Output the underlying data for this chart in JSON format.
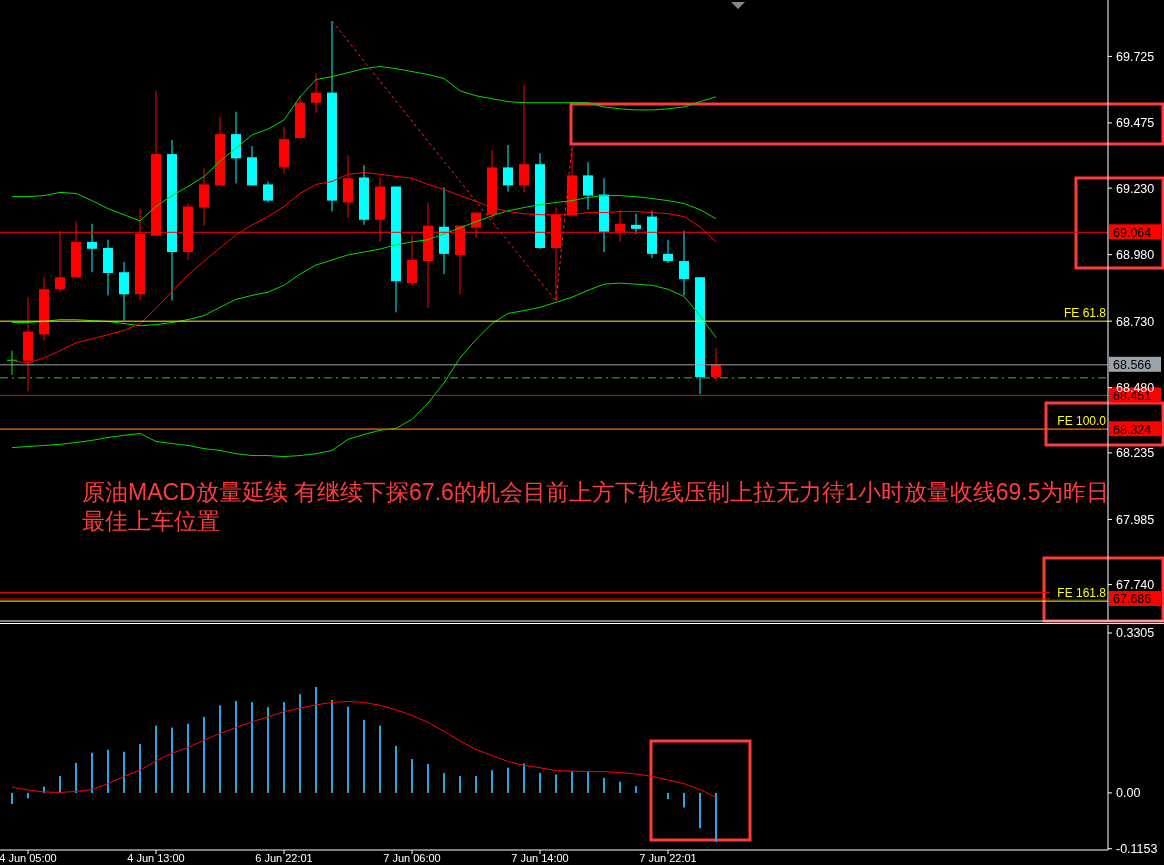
{
  "chart_data": [
    {
      "type": "candlestick",
      "tick_labels": "y",
      "categories": [
        null,
        null,
        null,
        null,
        null,
        null,
        null,
        null,
        null,
        null,
        null,
        null,
        null,
        null,
        null,
        null,
        null,
        null,
        null,
        null,
        null,
        null,
        null,
        null,
        null,
        null,
        null,
        null,
        null,
        null,
        null,
        null,
        null,
        null,
        null,
        null,
        null,
        null,
        null,
        null,
        null,
        null,
        null,
        null,
        null
      ],
      "ohlc": [
        [
          68.585,
          68.619,
          68.528,
          68.585
        ],
        [
          68.581,
          68.82,
          68.467,
          68.691
        ],
        [
          68.68,
          68.895,
          68.657,
          68.85
        ],
        [
          68.85,
          69.07,
          68.839,
          68.895
        ],
        [
          68.895,
          69.104,
          68.895,
          69.028
        ],
        [
          69.028,
          69.096,
          68.914,
          69.002
        ],
        [
          69.005,
          69.036,
          68.827,
          68.911
        ],
        [
          68.914,
          68.952,
          68.733,
          68.831
        ],
        [
          68.831,
          69.153,
          68.808,
          69.058
        ],
        [
          69.051,
          69.596,
          69.051,
          69.358
        ],
        [
          69.358,
          69.411,
          68.808,
          68.99
        ],
        [
          68.99,
          69.172,
          68.96,
          69.161
        ],
        [
          69.157,
          69.305,
          69.089,
          69.244
        ],
        [
          69.24,
          69.498,
          69.24,
          69.433
        ],
        [
          69.433,
          69.517,
          69.248,
          69.342
        ],
        [
          69.346,
          69.388,
          69.24,
          69.24
        ],
        [
          69.244,
          69.255,
          69.176,
          69.183
        ],
        [
          69.308,
          69.46,
          69.286,
          69.414
        ],
        [
          69.418,
          69.577,
          69.418,
          69.551
        ],
        [
          69.551,
          69.661,
          69.513,
          69.589
        ],
        [
          69.589,
          69.858,
          69.142,
          69.183
        ],
        [
          69.176,
          69.354,
          69.119,
          69.267
        ],
        [
          69.27,
          69.316,
          69.092,
          69.111
        ],
        [
          69.111,
          69.27,
          69.028,
          69.236
        ],
        [
          69.236,
          69.236,
          68.763,
          68.88
        ],
        [
          68.873,
          69.055,
          68.865,
          68.96
        ],
        [
          68.956,
          69.176,
          68.778,
          69.089
        ],
        [
          69.085,
          69.233,
          68.907,
          68.983
        ],
        [
          68.979,
          69.089,
          68.831,
          69.089
        ],
        [
          69.081,
          69.138,
          69.043,
          69.138
        ],
        [
          69.13,
          69.373,
          69.115,
          69.308
        ],
        [
          69.308,
          69.392,
          69.217,
          69.24
        ],
        [
          69.24,
          69.619,
          69.214,
          69.32
        ],
        [
          69.32,
          69.361,
          69.002,
          69.005
        ],
        [
          69.005,
          69.157,
          68.805,
          69.13
        ],
        [
          69.127,
          69.38,
          69.127,
          69.278
        ],
        [
          69.278,
          69.327,
          69.149,
          69.202
        ],
        [
          69.206,
          69.267,
          68.99,
          69.066
        ],
        [
          69.066,
          69.149,
          69.028,
          69.096
        ],
        [
          69.092,
          69.134,
          69.058,
          69.077
        ],
        [
          69.123,
          69.145,
          68.967,
          68.983
        ],
        [
          68.983,
          69.036,
          68.949,
          68.956
        ],
        [
          68.956,
          69.07,
          68.827,
          68.888
        ],
        [
          68.895,
          68.895,
          68.456,
          68.52
        ],
        [
          68.52,
          68.63,
          68.505,
          68.566
        ]
      ],
      "colors": [
        "#00ff00",
        "#ff0000",
        "#ff0000",
        "#ff0000",
        "#ff0000",
        "#00ffff",
        "#00ffff",
        "#00ffff",
        "#ff0000",
        "#ff0000",
        "#00ffff",
        "#ff0000",
        "#ff0000",
        "#ff0000",
        "#00ffff",
        "#00ffff",
        "#00ffff",
        "#ff0000",
        "#ff0000",
        "#ff0000",
        "#00ffff",
        "#ff0000",
        "#00ffff",
        "#ff0000",
        "#00ffff",
        "#ff0000",
        "#ff0000",
        "#00ffff",
        "#ff0000",
        "#ff0000",
        "#ff0000",
        "#00ffff",
        "#ff0000",
        "#00ffff",
        "#ff0000",
        "#ff0000",
        "#00ffff",
        "#00ffff",
        "#ff0000",
        "#00ffff",
        "#00ffff",
        "#00ffff",
        "#00ffff",
        "#00ffff",
        "#ff0000"
      ],
      "series": [
        {
          "type": "line",
          "color": "#00dd00",
          "values": [
            69.198,
            69.198,
            69.202,
            69.214,
            69.21,
            69.183,
            69.153,
            69.13,
            69.107,
            69.161,
            69.202,
            69.236,
            69.274,
            69.331,
            69.38,
            69.43,
            69.452,
            69.486,
            69.573,
            69.638,
            69.649,
            69.664,
            69.679,
            69.687,
            69.679,
            69.668,
            69.657,
            69.642,
            69.596,
            69.577,
            69.566,
            69.555,
            69.551,
            69.551,
            69.551,
            69.551,
            69.551,
            69.535,
            69.528,
            69.524,
            69.524,
            69.528,
            69.535,
            69.555,
            69.573
          ]
        },
        {
          "type": "line",
          "color": "#00dd00",
          "values": [
            68.725,
            68.725,
            68.729,
            68.736,
            68.736,
            68.732,
            68.729,
            68.721,
            68.713,
            68.717,
            68.725,
            68.736,
            68.751,
            68.782,
            68.812,
            68.827,
            68.839,
            68.865,
            68.907,
            68.941,
            68.96,
            68.979,
            68.99,
            69.001,
            69.017,
            69.028,
            69.036,
            69.058,
            69.081,
            69.104,
            69.126,
            69.145,
            69.157,
            69.168,
            69.176,
            69.183,
            69.195,
            69.202,
            69.202,
            69.198,
            69.191,
            69.183,
            69.172,
            69.149,
            69.115
          ]
        },
        {
          "type": "line",
          "color": "#ff0000",
          "values": [
            68.581,
            68.573,
            68.592,
            68.619,
            68.649,
            68.664,
            68.679,
            68.695,
            68.721,
            68.778,
            68.842,
            68.903,
            68.956,
            69.005,
            69.054,
            69.092,
            69.123,
            69.161,
            69.21,
            69.244,
            69.255,
            69.282,
            69.289,
            69.282,
            69.274,
            69.267,
            69.244,
            69.225,
            69.202,
            69.18,
            69.157,
            69.142,
            69.134,
            69.13,
            69.13,
            69.13,
            69.138,
            69.138,
            69.142,
            69.142,
            69.138,
            69.134,
            69.123,
            69.085,
            69.028
          ]
        },
        {
          "type": "line",
          "color": "#ff2020",
          "line_style": "dotted",
          "values": [
            null,
            null,
            null,
            null,
            null,
            null,
            null,
            null,
            null,
            null,
            null,
            null,
            null,
            null,
            null,
            null,
            null,
            null,
            null,
            null,
            69.858,
            69.783,
            69.707,
            69.632,
            69.557,
            69.482,
            69.406,
            69.331,
            69.256,
            69.18,
            69.105,
            69.03,
            68.955,
            68.88,
            68.805,
            69.384,
            null,
            null,
            null,
            null,
            null,
            null,
            null,
            null,
            null
          ]
        },
        {
          "type": "line",
          "color": "#00dd00",
          "values": [
            68.255,
            68.259,
            68.263,
            68.267,
            68.274,
            68.282,
            68.293,
            68.301,
            68.308,
            68.278,
            68.27,
            68.263,
            68.251,
            68.244,
            68.232,
            68.225,
            68.225,
            68.221,
            68.225,
            68.232,
            68.244,
            68.286,
            68.304,
            68.32,
            68.327,
            68.361,
            68.422,
            68.498,
            68.592,
            68.661,
            68.721,
            68.759,
            68.77,
            68.782,
            68.801,
            68.82,
            68.846,
            68.869,
            68.873,
            68.869,
            68.865,
            68.85,
            68.823,
            68.751,
            68.668
          ]
        }
      ],
      "ylim": [
        67.607,
        69.937
      ],
      "yticks": [
        69.725,
        69.475,
        {
          "value": 69.23,
          "label": "69.230"
        },
        {
          "value": 68.98,
          "label": "68.980"
        },
        {
          "value": 68.73,
          "label": "68.730"
        },
        {
          "value": 68.48,
          "label": "68.480"
        },
        68.235,
        67.985,
        {
          "value": 67.74,
          "label": "67.740"
        }
      ],
      "ref_lines": [
        {
          "axis": "y",
          "value": 68.73,
          "label": "FE 61.8",
          "color": "#ffff00"
        },
        {
          "axis": "y",
          "value": 68.324,
          "label": "FE 100.0",
          "color": "#ffff00"
        },
        {
          "axis": "y",
          "value": 67.678,
          "label": "FE 161.8",
          "color": "#ffff00"
        },
        {
          "axis": "y",
          "value": 68.517,
          "label": null,
          "color": "#22cc22",
          "line_style": "dashed"
        },
        {
          "axis": "y",
          "value": 68.566,
          "label": "68.566",
          "color": "#9aa2aa"
        },
        {
          "axis": "y",
          "value": 69.064,
          "label": "69.064",
          "color": "#ff0000"
        },
        {
          "axis": "y",
          "value": 68.451,
          "label": "68.451",
          "color": "#ff0000"
        },
        {
          "axis": "y",
          "value": 68.324,
          "label": "68.324",
          "color": "#ff0000"
        },
        {
          "axis": "y",
          "value": 67.71,
          "label": null,
          "color": "#ff0000"
        },
        {
          "axis": "y",
          "value": 67.686,
          "label": "67.686",
          "color": "#ff0000"
        }
      ],
      "annotations": [
        "原油MACD放量延续 有继续下探67.6的机会目前上方下轨线压制上拉无力待1小时放量收线69.5为昨日最佳上车位置"
      ]
    },
    {
      "type": "bar",
      "categories": [
        null,
        "4 Jun 05:00",
        null,
        null,
        null,
        null,
        null,
        null,
        null,
        "4 Jun 13:00",
        null,
        null,
        null,
        null,
        null,
        null,
        null,
        "6 Jun 22:01",
        null,
        null,
        null,
        null,
        null,
        null,
        null,
        "7 Jun 06:00",
        null,
        null,
        null,
        null,
        null,
        null,
        null,
        "7 Jun 14:00",
        null,
        null,
        null,
        null,
        null,
        null,
        null,
        "7 Jun 22:01",
        null,
        null,
        null
      ],
      "series": [
        {
          "type": "bar",
          "color": "#20aaee",
          "values": [
            -0.023,
            -0.011,
            0.013,
            0.035,
            0.062,
            0.083,
            0.089,
            0.085,
            0.101,
            0.139,
            0.135,
            0.143,
            0.157,
            0.181,
            0.19,
            0.188,
            0.177,
            0.188,
            0.204,
            0.219,
            0.192,
            0.178,
            0.151,
            0.139,
            0.097,
            0.07,
            0.06,
            0.041,
            0.035,
            0.035,
            0.047,
            0.052,
            0.061,
            0.041,
            0.038,
            0.045,
            0.044,
            0.031,
            0.023,
            0.014,
            null,
            -0.013,
            -0.03,
            -0.073,
            -0.101
          ]
        },
        {
          "type": "line",
          "color": "#ff0000",
          "values": [
            0.012,
            0.006,
            0.002,
            0.001,
            0.003,
            0.007,
            0.019,
            0.034,
            0.047,
            0.066,
            0.082,
            0.094,
            0.109,
            0.123,
            0.135,
            0.147,
            0.157,
            0.168,
            0.175,
            0.182,
            0.187,
            0.189,
            0.187,
            0.181,
            0.172,
            0.16,
            0.146,
            0.127,
            0.107,
            0.09,
            0.077,
            0.065,
            0.057,
            0.052,
            0.046,
            0.045,
            0.044,
            0.044,
            0.042,
            0.039,
            0.034,
            0.027,
            0.019,
            0.007,
            -0.009
          ]
        }
      ],
      "ylim": [
        -0.118,
        0.347
      ],
      "yticks": [
        0.3305,
        {
          "value": 0,
          "label": "0.00"
        },
        -0.1153
      ]
    }
  ]
}
